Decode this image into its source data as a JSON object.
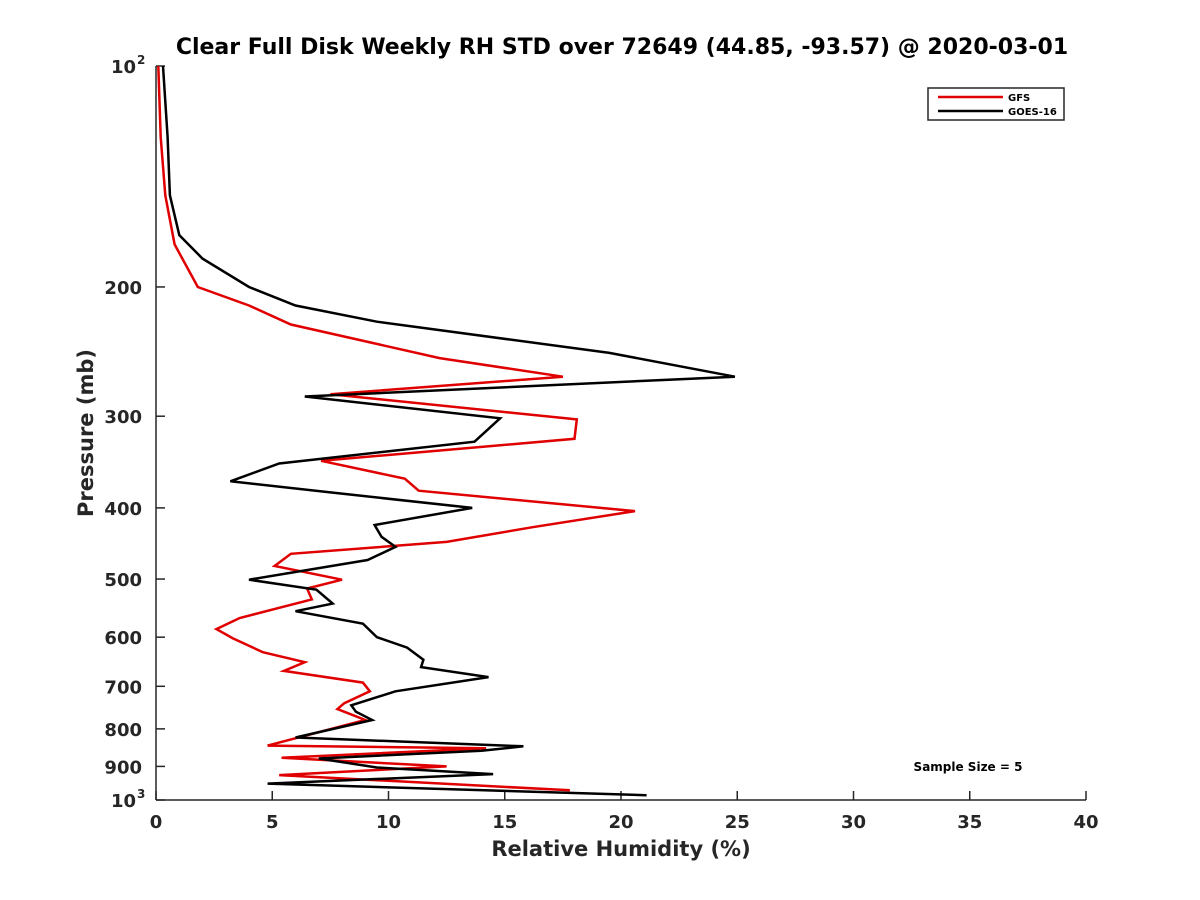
{
  "chart_data": {
    "type": "line",
    "title": "Clear Full Disk Weekly RH STD over 72649 (44.85, -93.57) @ 2020-03-01",
    "xlabel": "Relative Humidity (%)",
    "ylabel": "Pressure (mb)",
    "xlim": [
      0,
      40
    ],
    "ylim": [
      100,
      1000
    ],
    "y_scale": "log",
    "y_reversed": true,
    "x_ticks": [
      {
        "value": 0,
        "label": "0"
      },
      {
        "value": 5,
        "label": "5"
      },
      {
        "value": 10,
        "label": "10"
      },
      {
        "value": 15,
        "label": "15"
      },
      {
        "value": 20,
        "label": "20"
      },
      {
        "value": 25,
        "label": "25"
      },
      {
        "value": 30,
        "label": "30"
      },
      {
        "value": 35,
        "label": "35"
      },
      {
        "value": 40,
        "label": "40"
      }
    ],
    "y_ticks": [
      {
        "value": 100,
        "base": "10",
        "exp": "2"
      },
      {
        "value": 200,
        "label": "200"
      },
      {
        "value": 300,
        "label": "300"
      },
      {
        "value": 400,
        "label": "400"
      },
      {
        "value": 500,
        "label": "500"
      },
      {
        "value": 600,
        "label": "600"
      },
      {
        "value": 700,
        "label": "700"
      },
      {
        "value": 800,
        "label": "800"
      },
      {
        "value": 900,
        "label": "900"
      },
      {
        "value": 1000,
        "base": "10",
        "exp": "3"
      }
    ],
    "grid": false,
    "legend_position": "top-right",
    "annotation": "Sample Size = 5",
    "series": [
      {
        "name": "GFS",
        "color": "#e00000",
        "points": [
          [
            0.1,
            100
          ],
          [
            0.2,
            125
          ],
          [
            0.4,
            150
          ],
          [
            0.8,
            175
          ],
          [
            1.8,
            200
          ],
          [
            4.0,
            212
          ],
          [
            5.8,
            225
          ],
          [
            12.2,
            250
          ],
          [
            17.5,
            265
          ],
          [
            7.5,
            280
          ],
          [
            18.1,
            303
          ],
          [
            18.0,
            322
          ],
          [
            7.1,
            345
          ],
          [
            10.7,
            365
          ],
          [
            11.3,
            379
          ],
          [
            20.6,
            404
          ],
          [
            16.2,
            425
          ],
          [
            12.5,
            445
          ],
          [
            5.8,
            462
          ],
          [
            5.1,
            480
          ],
          [
            8.0,
            501
          ],
          [
            6.5,
            515
          ],
          [
            6.7,
            533
          ],
          [
            3.6,
            565
          ],
          [
            2.6,
            585
          ],
          [
            3.3,
            602
          ],
          [
            4.6,
            629
          ],
          [
            6.4,
            649
          ],
          [
            5.5,
            667
          ],
          [
            8.9,
            692
          ],
          [
            9.2,
            711
          ],
          [
            8.1,
            738
          ],
          [
            7.8,
            752
          ],
          [
            9.0,
            778
          ],
          [
            4.8,
            843
          ],
          [
            14.2,
            850
          ],
          [
            5.4,
            876
          ],
          [
            12.5,
            900
          ],
          [
            5.3,
            925
          ],
          [
            17.8,
            970
          ]
        ]
      },
      {
        "name": "GOES-16",
        "color": "#000000",
        "points": [
          [
            0.3,
            100
          ],
          [
            0.5,
            125
          ],
          [
            0.6,
            150
          ],
          [
            1.0,
            170
          ],
          [
            2.0,
            183
          ],
          [
            4.0,
            200
          ],
          [
            6.0,
            212
          ],
          [
            9.5,
            223
          ],
          [
            19.5,
            246
          ],
          [
            24.9,
            265
          ],
          [
            6.4,
            282
          ],
          [
            14.8,
            302
          ],
          [
            13.7,
            325
          ],
          [
            5.3,
            348
          ],
          [
            3.2,
            368
          ],
          [
            7.5,
            381
          ],
          [
            13.6,
            400
          ],
          [
            9.4,
            422
          ],
          [
            9.7,
            438
          ],
          [
            10.3,
            452
          ],
          [
            9.1,
            471
          ],
          [
            4.0,
            501
          ],
          [
            6.9,
            517
          ],
          [
            7.6,
            540
          ],
          [
            6.0,
            553
          ],
          [
            8.9,
            575
          ],
          [
            9.5,
            600
          ],
          [
            10.8,
            620
          ],
          [
            11.5,
            644
          ],
          [
            11.4,
            659
          ],
          [
            14.3,
            680
          ],
          [
            10.3,
            711
          ],
          [
            8.4,
            743
          ],
          [
            8.6,
            758
          ],
          [
            9.3,
            778
          ],
          [
            6.0,
            822
          ],
          [
            15.8,
            845
          ],
          [
            14.0,
            857
          ],
          [
            7.0,
            878
          ],
          [
            9.5,
            903
          ],
          [
            14.5,
            922
          ],
          [
            4.8,
            950
          ],
          [
            21.1,
            985
          ]
        ]
      }
    ]
  }
}
